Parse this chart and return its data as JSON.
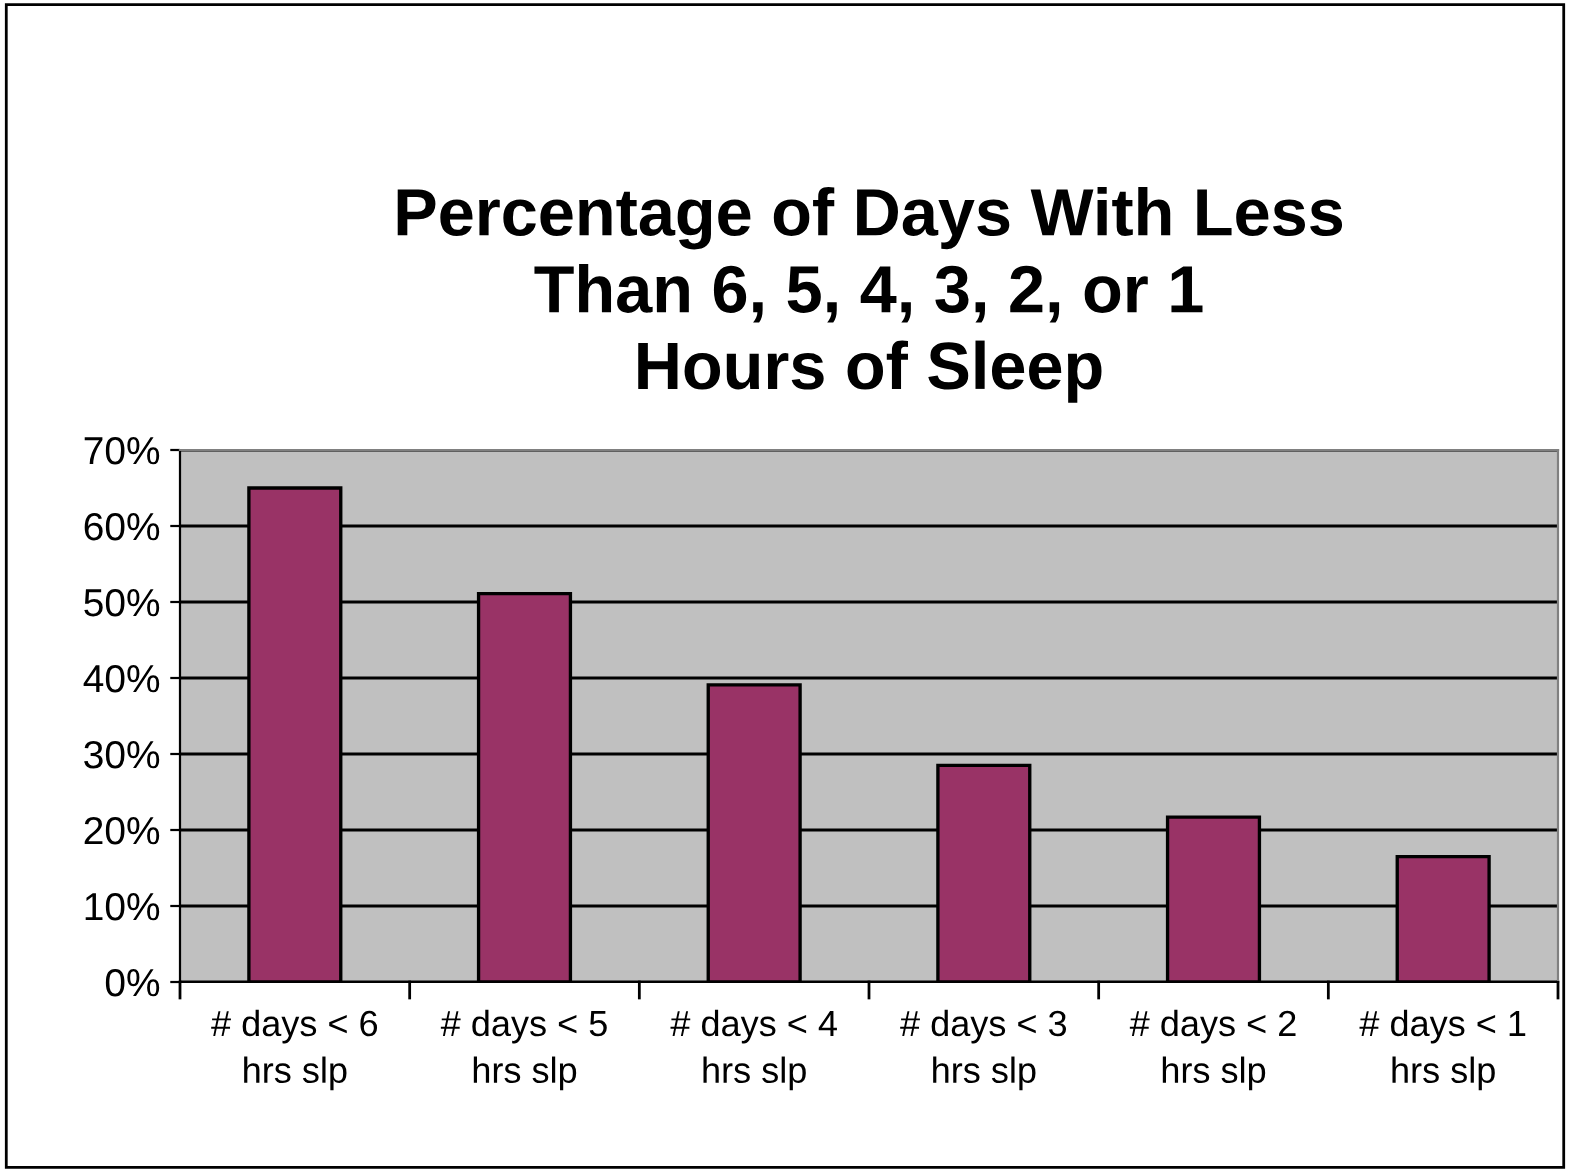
{
  "chart_data": {
    "type": "bar",
    "title": "Percentage of Days With Less\nThan 6, 5, 4, 3, 2, or 1\nHours of Sleep",
    "categories": [
      "# days < 6\nhrs slp",
      "# days < 5\nhrs slp",
      "# days < 4\nhrs slp",
      "# days < 3\nhrs slp",
      "# days < 2\nhrs slp",
      "# days < 1\nhrs slp"
    ],
    "values": [
      65.0,
      51.1,
      39.1,
      28.5,
      21.7,
      16.5
    ],
    "color": "#993366",
    "ylim": [
      0,
      70
    ],
    "yticks": [
      {
        "value": 0,
        "label": "0%"
      },
      {
        "value": 10,
        "label": "10%"
      },
      {
        "value": 20,
        "label": "20%"
      },
      {
        "value": 30,
        "label": "30%"
      },
      {
        "value": 40,
        "label": "40%"
      },
      {
        "value": 50,
        "label": "50%"
      },
      {
        "value": 60,
        "label": "60%"
      },
      {
        "value": 70,
        "label": "70%"
      }
    ],
    "grid": "y"
  }
}
